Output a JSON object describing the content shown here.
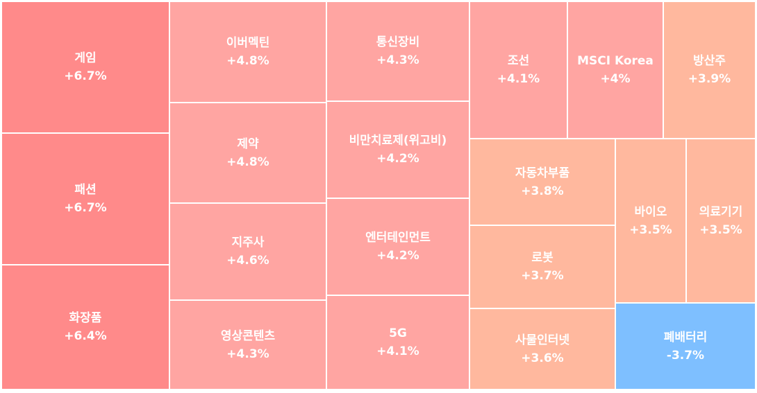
{
  "chart_data": {
    "type": "treemap",
    "items": [
      {
        "name": "게임",
        "value_label": "+6.7%",
        "value": 6.7,
        "color": "#ff8a8a"
      },
      {
        "name": "패션",
        "value_label": "+6.7%",
        "value": 6.7,
        "color": "#ff8a8a"
      },
      {
        "name": "화장품",
        "value_label": "+6.4%",
        "value": 6.4,
        "color": "#ff8a8a"
      },
      {
        "name": "이버멕틴",
        "value_label": "+4.8%",
        "value": 4.8,
        "color": "#ffa5a2"
      },
      {
        "name": "제약",
        "value_label": "+4.8%",
        "value": 4.8,
        "color": "#ffa5a2"
      },
      {
        "name": "지주사",
        "value_label": "+4.6%",
        "value": 4.6,
        "color": "#ffa5a2"
      },
      {
        "name": "영상콘텐츠",
        "value_label": "+4.3%",
        "value": 4.3,
        "color": "#ffa5a2"
      },
      {
        "name": "통신장비",
        "value_label": "+4.3%",
        "value": 4.3,
        "color": "#ffa5a2"
      },
      {
        "name": "비만치료제(위고비)",
        "value_label": "+4.2%",
        "value": 4.2,
        "color": "#ffa5a2"
      },
      {
        "name": "엔터테인먼트",
        "value_label": "+4.2%",
        "value": 4.2,
        "color": "#ffa5a2"
      },
      {
        "name": "5G",
        "value_label": "+4.1%",
        "value": 4.1,
        "color": "#ffa5a2"
      },
      {
        "name": "조선",
        "value_label": "+4.1%",
        "value": 4.1,
        "color": "#ffa5a2"
      },
      {
        "name": "MSCI Korea",
        "value_label": "+4%",
        "value": 4.0,
        "color": "#ffa5a2"
      },
      {
        "name": "방산주",
        "value_label": "+3.9%",
        "value": 3.9,
        "color": "#ffb89e"
      },
      {
        "name": "자동차부품",
        "value_label": "+3.8%",
        "value": 3.8,
        "color": "#ffb89e"
      },
      {
        "name": "로봇",
        "value_label": "+3.7%",
        "value": 3.7,
        "color": "#ffb89e"
      },
      {
        "name": "사물인터넷",
        "value_label": "+3.6%",
        "value": 3.6,
        "color": "#ffb89e"
      },
      {
        "name": "바이오",
        "value_label": "+3.5%",
        "value": 3.5,
        "color": "#ffb89e"
      },
      {
        "name": "의료기기",
        "value_label": "+3.5%",
        "value": 3.5,
        "color": "#ffb89e"
      },
      {
        "name": "폐배터리",
        "value_label": "-3.7%",
        "value": -3.7,
        "color": "#7ebfff"
      }
    ]
  }
}
